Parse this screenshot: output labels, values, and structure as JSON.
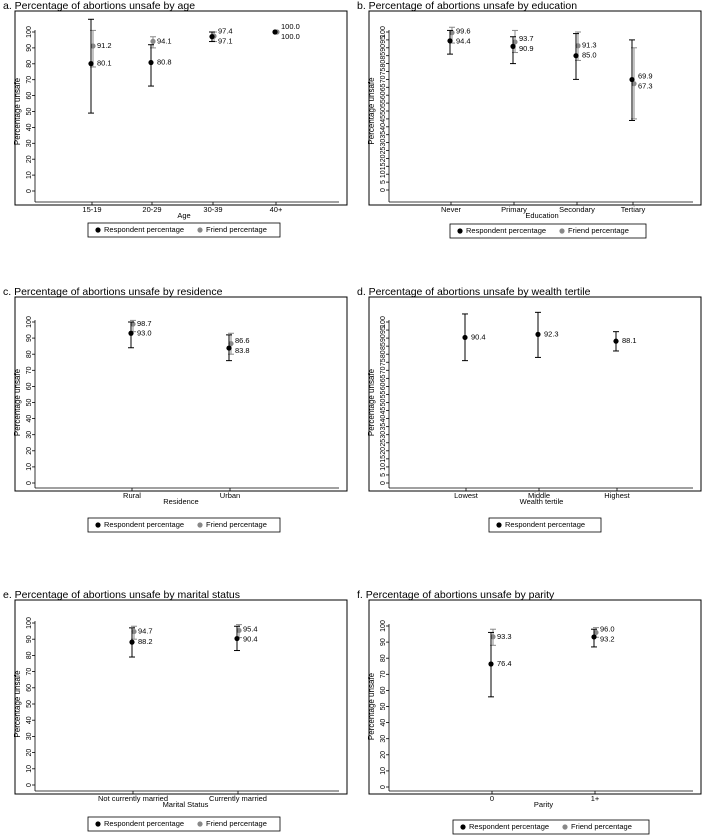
{
  "chart_data": [
    {
      "type": "scatter",
      "title": "a. Percentage of abortions unsafe by age",
      "xlabel": "Age",
      "ylabel": "Percentage unsafe",
      "ylim": [
        0,
        100
      ],
      "yticks": [
        "0",
        "10",
        "20",
        "30",
        "40",
        "50",
        "60",
        "70",
        "80",
        "90",
        "100"
      ],
      "categories": [
        "15-19",
        "20-29",
        "30-39",
        "40+"
      ],
      "series": [
        {
          "name": "Respondent percentage",
          "color": "#000000",
          "values": [
            80.1,
            80.8,
            97.1,
            100.0
          ],
          "labels": [
            "80.1",
            "80.8",
            "97.1",
            "100.0"
          ],
          "ci_low": [
            49,
            66,
            94,
            100
          ],
          "ci_high": [
            108,
            92,
            100,
            100
          ]
        },
        {
          "name": "Friend percentage",
          "color": "#888888",
          "values": [
            91.2,
            94.1,
            97.4,
            100.0
          ],
          "labels": [
            "91.2",
            "94.1",
            "97.4",
            "100.0"
          ],
          "ci_low": [
            78,
            90,
            94,
            100
          ],
          "ci_high": [
            101,
            97,
            100,
            100
          ]
        }
      ],
      "legend": [
        "Respondent percentage",
        "Friend percentage"
      ],
      "legend_position": "bottom"
    },
    {
      "type": "scatter",
      "title": "b. Percentage of abortions unsafe by education",
      "xlabel": "Education",
      "ylabel": "Percentage unsafe",
      "ylim": [
        0,
        100
      ],
      "yticks": [
        "0",
        "5",
        "10",
        "15",
        "20",
        "25",
        "30",
        "35",
        "40",
        "45",
        "50",
        "55",
        "60",
        "65",
        "70",
        "75",
        "80",
        "85",
        "90",
        "95",
        "100"
      ],
      "categories": [
        "Never",
        "Primary",
        "Secondary",
        "Tertiary"
      ],
      "series": [
        {
          "name": "Respondent percentage",
          "color": "#000000",
          "values": [
            94.4,
            90.9,
            85.0,
            69.9
          ],
          "labels": [
            "94.4",
            "90.9",
            "85.0",
            "69.9"
          ],
          "ci_low": [
            86,
            80,
            70,
            44
          ],
          "ci_high": [
            101,
            97,
            99,
            95
          ]
        },
        {
          "name": "Friend percentage",
          "color": "#888888",
          "values": [
            99.6,
            93.7,
            91.3,
            67.3
          ],
          "labels": [
            "99.6",
            "93.7",
            "91.3",
            "67.3"
          ],
          "ci_low": [
            93,
            87,
            82,
            45
          ],
          "ci_high": [
            103,
            101,
            100,
            90
          ]
        }
      ],
      "legend": [
        "Respondent percentage",
        "Friend percentage"
      ],
      "legend_position": "bottom"
    },
    {
      "type": "scatter",
      "title": "c. Percentage of abortions unsafe by residence",
      "xlabel": "Residence",
      "ylabel": "Percentage unsafe",
      "ylim": [
        0,
        100
      ],
      "yticks": [
        "0",
        "10",
        "20",
        "30",
        "40",
        "50",
        "60",
        "70",
        "80",
        "90",
        "100"
      ],
      "categories": [
        "Rural",
        "Urban"
      ],
      "series": [
        {
          "name": "Respondent percentage",
          "color": "#000000",
          "values": [
            93.0,
            83.8
          ],
          "labels": [
            "93.0",
            "83.8"
          ],
          "ci_low": [
            84,
            76
          ],
          "ci_high": [
            100,
            92
          ]
        },
        {
          "name": "Friend percentage",
          "color": "#888888",
          "values": [
            98.7,
            86.6
          ],
          "labels": [
            "98.7",
            "86.6"
          ],
          "ci_low": [
            94,
            80
          ],
          "ci_high": [
            101,
            93
          ]
        }
      ],
      "legend": [
        "Respondent percentage",
        "Friend percentage"
      ],
      "legend_position": "bottom"
    },
    {
      "type": "scatter",
      "title": "d. Percentage of abortions unsafe by wealth tertile",
      "xlabel": "Wealth tertile",
      "ylabel": "Percentage unsafe",
      "ylim": [
        0,
        100
      ],
      "yticks": [
        "0",
        "5",
        "10",
        "15",
        "20",
        "25",
        "30",
        "35",
        "40",
        "45",
        "50",
        "55",
        "60",
        "65",
        "70",
        "75",
        "80",
        "85",
        "90",
        "95",
        "100"
      ],
      "categories": [
        "Lowest",
        "Middle",
        "Highest"
      ],
      "series": [
        {
          "name": "Respondent percentage",
          "color": "#000000",
          "values": [
            90.4,
            92.3,
            88.1
          ],
          "labels": [
            "90.4",
            "92.3",
            "88.1"
          ],
          "ci_low": [
            76,
            78,
            82
          ],
          "ci_high": [
            105,
            106,
            94
          ]
        }
      ],
      "legend": [
        "Respondent percentage"
      ],
      "legend_position": "bottom"
    },
    {
      "type": "scatter",
      "title": "e. Percentage of abortions unsafe by marital status",
      "xlabel": "Marital Status",
      "ylabel": "Percentage unsafe",
      "ylim": [
        0,
        100
      ],
      "yticks": [
        "0",
        "10",
        "20",
        "30",
        "40",
        "50",
        "60",
        "70",
        "80",
        "90",
        "100"
      ],
      "categories": [
        "Not currently married",
        "Currently married"
      ],
      "series": [
        {
          "name": "Respondent percentage",
          "color": "#000000",
          "values": [
            88.2,
            90.4
          ],
          "labels": [
            "88.2",
            "90.4"
          ],
          "ci_low": [
            79,
            83
          ],
          "ci_high": [
            97,
            98
          ]
        },
        {
          "name": "Friend percentage",
          "color": "#888888",
          "values": [
            94.7,
            95.4
          ],
          "labels": [
            "94.7",
            "95.4"
          ],
          "ci_low": [
            90,
            91
          ],
          "ci_high": [
            98,
            99
          ]
        }
      ],
      "legend": [
        "Respondent percentage",
        "Friend percentage"
      ],
      "legend_position": "bottom"
    },
    {
      "type": "scatter",
      "title": "f. Percentage of abortions unsafe by parity",
      "xlabel": "Parity",
      "ylabel": "Percentage unsafe",
      "ylim": [
        0,
        100
      ],
      "yticks": [
        "0",
        "10",
        "20",
        "30",
        "40",
        "50",
        "60",
        "70",
        "80",
        "90",
        "100"
      ],
      "categories": [
        "0",
        "1+"
      ],
      "series": [
        {
          "name": "Respondent percentage",
          "color": "#000000",
          "values": [
            76.4,
            93.2
          ],
          "labels": [
            "76.4",
            "93.2"
          ],
          "ci_low": [
            56,
            87
          ],
          "ci_high": [
            96,
            98
          ]
        },
        {
          "name": "Friend percentage",
          "color": "#888888",
          "values": [
            93.3,
            96.0
          ],
          "labels": [
            "93.3",
            "96.0"
          ],
          "ci_low": [
            88,
            93
          ],
          "ci_high": [
            98,
            99
          ]
        }
      ],
      "legend": [
        "Respondent percentage",
        "Friend percentage"
      ],
      "legend_position": "bottom"
    }
  ]
}
